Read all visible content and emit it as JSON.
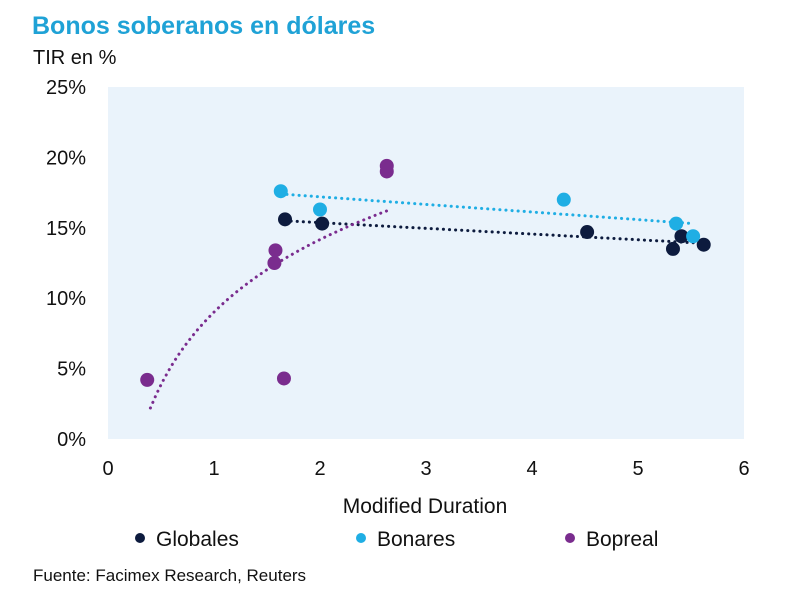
{
  "page": {
    "title": "Bonos soberanos en dólares",
    "subtitle": "TIR en %",
    "source": "Fuente: Facimex Research, Reuters"
  },
  "colors": {
    "title": "#1fa2d6",
    "plot_bg": "#eaf3fb",
    "Globales": "#0d1b3e",
    "Bonares": "#1faee4",
    "Bopreal": "#7a2c8e"
  },
  "chart_data": {
    "type": "scatter",
    "title": "Bonos soberanos en dólares",
    "xlabel": "Modified Duration",
    "ylabel": "TIR en %",
    "xlim": [
      0,
      6
    ],
    "ylim": [
      0,
      25
    ],
    "x_ticks": [
      0,
      1,
      2,
      3,
      4,
      5,
      6
    ],
    "x_tick_labels": [
      "0",
      "1",
      "2",
      "3",
      "4",
      "5",
      "6"
    ],
    "y_ticks": [
      0,
      5,
      10,
      15,
      20,
      25
    ],
    "y_tick_labels": [
      "0%",
      "5%",
      "10%",
      "15%",
      "20%",
      "25%"
    ],
    "grid": false,
    "legend_position": "bottom",
    "series": [
      {
        "name": "Globales",
        "points": [
          [
            1.67,
            15.6
          ],
          [
            2.02,
            15.3
          ],
          [
            4.52,
            14.7
          ],
          [
            5.33,
            13.5
          ],
          [
            5.41,
            14.4
          ],
          [
            5.62,
            13.8
          ]
        ],
        "trendline": {
          "type": "linear",
          "x_range": [
            1.67,
            5.62
          ],
          "y_range": [
            15.5,
            13.9
          ]
        }
      },
      {
        "name": "Bonares",
        "points": [
          [
            1.63,
            17.6
          ],
          [
            2.0,
            16.3
          ],
          [
            4.3,
            17.0
          ],
          [
            5.36,
            15.3
          ],
          [
            5.52,
            14.4
          ]
        ],
        "trendline": {
          "type": "linear",
          "x_range": [
            1.63,
            5.52
          ],
          "y_range": [
            17.4,
            15.3
          ]
        }
      },
      {
        "name": "Bopreal",
        "points": [
          [
            0.37,
            4.2
          ],
          [
            1.57,
            12.5
          ],
          [
            1.58,
            13.4
          ],
          [
            1.66,
            4.3
          ],
          [
            2.63,
            19.0
          ],
          [
            2.63,
            19.4
          ]
        ],
        "trendline": {
          "type": "logarithmic",
          "x_range": [
            0.4,
            2.63
          ],
          "y_range": [
            2.2,
            16.2
          ]
        }
      }
    ]
  }
}
